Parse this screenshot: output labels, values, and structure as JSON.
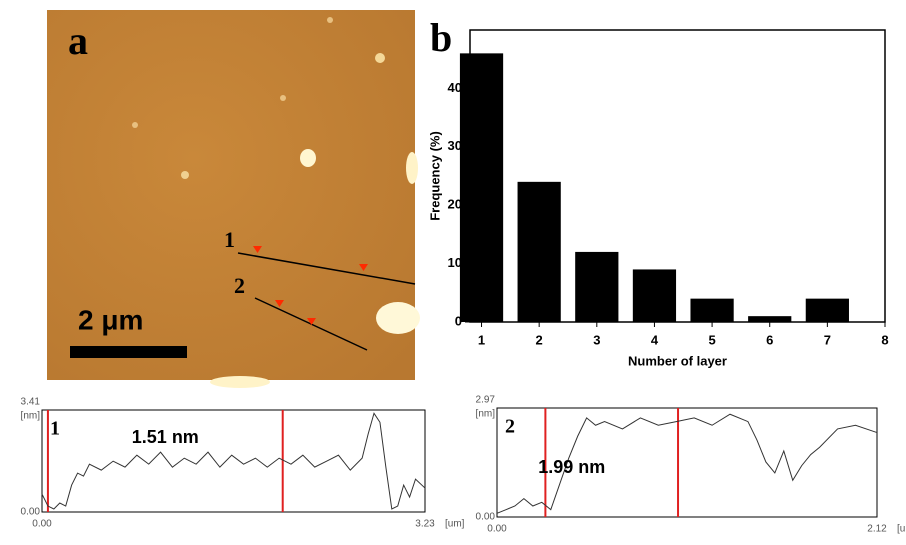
{
  "panels": {
    "a": "a",
    "b": "b",
    "scale": "2 μm",
    "line1": "1",
    "line2": "2"
  },
  "chart_data": [
    {
      "type": "bar",
      "x": [
        1,
        2,
        3,
        4,
        5,
        6,
        7
      ],
      "values": [
        46,
        24,
        12,
        9,
        4,
        1,
        4
      ],
      "color": "#000000",
      "xlim": [
        0.8,
        8
      ],
      "ylim": [
        0,
        50
      ],
      "xticks": [
        1,
        2,
        3,
        4,
        5,
        6,
        7,
        8
      ],
      "yticks": [
        0,
        10,
        20,
        30,
        40
      ],
      "x_label": "Number of layer",
      "y_label": "Frequency (%)"
    },
    {
      "type": "line",
      "panel": "1",
      "annotation": "1.51 nm",
      "x_unit": "[um]",
      "y_unit": "[nm]",
      "color": "#333333",
      "marker_color": "#e02020",
      "markers": [
        0.05,
        2.03
      ],
      "xlim": [
        0,
        3.23
      ],
      "ylim": [
        0,
        3.41
      ],
      "xticks": [
        {
          "value": 0,
          "label": "0.00"
        },
        3.23
      ],
      "yticks": [
        {
          "value": 0,
          "label": "0.00"
        },
        3.41
      ],
      "x": [
        0,
        0.05,
        0.1,
        0.15,
        0.2,
        0.25,
        0.3,
        0.35,
        0.4,
        0.5,
        0.6,
        0.7,
        0.8,
        0.9,
        1.0,
        1.1,
        1.2,
        1.3,
        1.4,
        1.5,
        1.6,
        1.7,
        1.8,
        1.9,
        2.0,
        2.1,
        2.2,
        2.3,
        2.4,
        2.5,
        2.6,
        2.7,
        2.75,
        2.8,
        2.85,
        2.9,
        2.95,
        3.0,
        3.05,
        3.1,
        3.15,
        3.23
      ],
      "values": [
        0.6,
        0.2,
        0.1,
        0.3,
        0.2,
        0.9,
        1.3,
        1.2,
        1.6,
        1.4,
        1.7,
        1.5,
        1.9,
        1.6,
        2.0,
        1.5,
        1.8,
        1.6,
        2.0,
        1.5,
        1.9,
        1.6,
        1.8,
        1.5,
        1.8,
        1.6,
        1.9,
        1.5,
        1.7,
        1.9,
        1.4,
        1.8,
        2.6,
        3.3,
        3.0,
        1.5,
        0.1,
        0.2,
        0.9,
        0.5,
        1.1,
        0.8
      ]
    },
    {
      "type": "line",
      "panel": "2",
      "annotation": "1.99 nm",
      "x_unit": "[um]",
      "y_unit": "[nm]",
      "color": "#333333",
      "marker_color": "#e02020",
      "markers": [
        0.27,
        1.01
      ],
      "xlim": [
        0,
        2.12
      ],
      "ylim": [
        0,
        2.97
      ],
      "xticks": [
        {
          "value": 0,
          "label": "0.00"
        },
        2.12
      ],
      "yticks": [
        {
          "value": 0,
          "label": "0.00"
        },
        2.97
      ],
      "x": [
        0,
        0.05,
        0.1,
        0.15,
        0.2,
        0.25,
        0.3,
        0.35,
        0.4,
        0.45,
        0.5,
        0.55,
        0.6,
        0.7,
        0.8,
        0.9,
        1.0,
        1.1,
        1.2,
        1.3,
        1.4,
        1.45,
        1.5,
        1.55,
        1.6,
        1.65,
        1.7,
        1.75,
        1.8,
        1.9,
        2.0,
        2.12
      ],
      "values": [
        0.1,
        0.2,
        0.3,
        0.5,
        0.3,
        0.4,
        0.2,
        0.9,
        1.6,
        2.2,
        2.7,
        2.5,
        2.6,
        2.4,
        2.7,
        2.5,
        2.6,
        2.7,
        2.5,
        2.8,
        2.6,
        2.1,
        1.5,
        1.2,
        1.8,
        1.0,
        1.4,
        1.7,
        1.9,
        2.4,
        2.5,
        2.3
      ]
    }
  ]
}
